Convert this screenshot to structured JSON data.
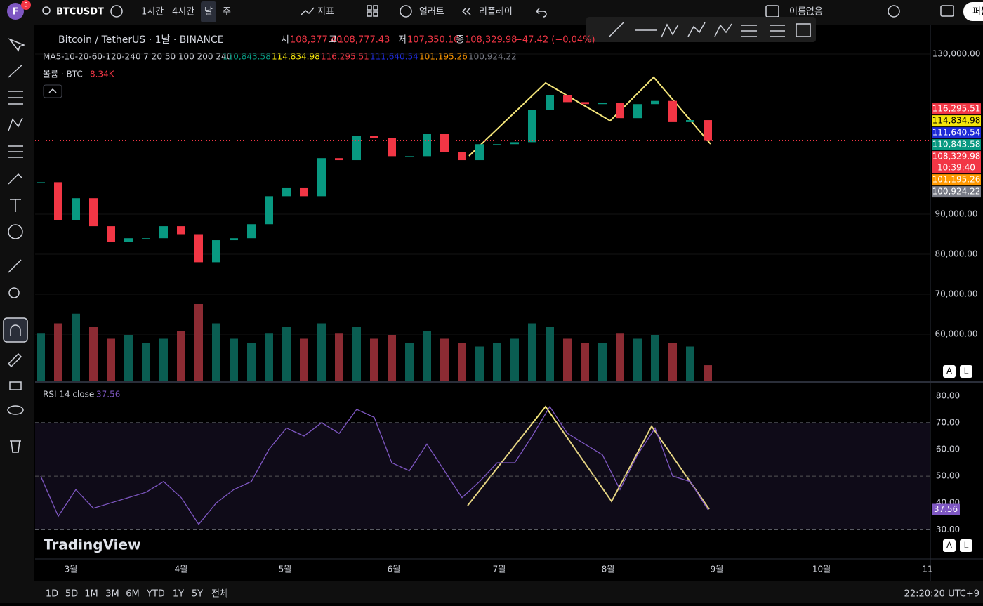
{
  "toolbar": {
    "avatar": "F",
    "badge": "5",
    "symbol": "BTCUSDT",
    "intervals": [
      "1시간",
      "4시간",
      "날",
      "주"
    ],
    "indicators": "지표",
    "alert": "얼러트",
    "replay": "리플레이",
    "layout_name": "이름없음",
    "publish": "퍼블"
  },
  "legend": {
    "title": "Bitcoin / TetherUS · 1날 · BINANCE",
    "o_label": "시",
    "o": "108,377.40",
    "h_label": "고",
    "h": "108,777.43",
    "l_label": "저",
    "l": "107,350.10",
    "c_label": "종",
    "c": "108,329.98",
    "change": "−47.42 (−0.04%)",
    "ma_title": "MA5-10-20-60-120-240 7 20 50 100 200 240"
  },
  "chart_data": {
    "type": "candlestick",
    "closes": [
      98000,
      88500,
      94000,
      87000,
      83000,
      84000,
      84000,
      87000,
      85000,
      78000,
      83500,
      84000,
      87500,
      94500,
      96500,
      94500,
      104000,
      103500,
      109500,
      109000,
      104500,
      104500,
      110000,
      105500,
      103500,
      107500,
      107500,
      108000,
      116000,
      119800,
      118000,
      117500,
      117800,
      114000,
      117500,
      118300,
      113000,
      113500,
      108329.98
    ],
    "ylim": [
      48246,
      136491
    ],
    "yticks": [
      {
        "value": 60000,
        "label": "60,000.00"
      },
      {
        "value": 70000,
        "label": "70,000.00"
      },
      {
        "value": 80000,
        "label": "80,000.00"
      },
      {
        "value": 90000,
        "label": "90,000.00"
      },
      {
        "value": 130000,
        "label": "130,000.00"
      }
    ],
    "moving_averages": [
      {
        "value": 110843.58,
        "label": "110,843.58",
        "color": "#089981"
      },
      {
        "value": 114834.98,
        "label": "114,834.98",
        "color": "#f5e50a"
      },
      {
        "value": 116295.51,
        "label": "116,295.51",
        "color": "#f23645"
      },
      {
        "value": 111640.54,
        "label": "111,640.54",
        "color": "#1e2bd8"
      },
      {
        "value": 101195.26,
        "label": "101,195.26",
        "color": "#ff9800"
      },
      {
        "value": 100924.22,
        "label": "100,924.22",
        "color": "#787b86"
      }
    ],
    "last_price": {
      "value": 108329.98,
      "label": "108,329.98",
      "color": "#f23645",
      "countdown": "10:39:40"
    },
    "volume": {
      "title": "볼륨 · BTC",
      "last_label": "8.34K",
      "values": [
        25,
        30,
        35,
        28,
        22,
        24,
        20,
        22,
        26,
        40,
        30,
        22,
        20,
        25,
        28,
        22,
        30,
        25,
        28,
        22,
        24,
        20,
        26,
        22,
        20,
        18,
        20,
        22,
        30,
        28,
        22,
        20,
        20,
        25,
        22,
        24,
        20,
        18,
        8.34
      ]
    },
    "rsi": {
      "title": "RSI 14 close",
      "last_label": "37.56",
      "values": [
        50,
        35,
        45,
        38,
        40,
        42,
        44,
        48,
        42,
        32,
        40,
        45,
        48,
        60,
        68,
        65,
        70,
        66,
        75,
        72,
        55,
        52,
        62,
        52,
        42,
        48,
        55,
        55,
        65,
        76,
        66,
        62,
        58,
        45,
        58,
        68,
        50,
        48,
        37.56
      ],
      "ylim": [
        19.3,
        84.7
      ],
      "yticks": [
        {
          "value": 30,
          "label": "30.00"
        },
        {
          "value": 40,
          "label": "40.00"
        },
        {
          "value": 50,
          "label": "50.00"
        },
        {
          "value": 60,
          "label": "60.00"
        },
        {
          "value": 70,
          "label": "70.00"
        },
        {
          "value": 80,
          "label": "80.00"
        }
      ],
      "band": [
        30,
        70
      ],
      "midline": 50
    },
    "months": [
      "3월",
      "4월",
      "5월",
      "6월",
      "7월",
      "8월",
      "9월",
      "10월",
      "11"
    ],
    "scale_buttons": [
      "A",
      "L"
    ]
  },
  "bottom_bar": {
    "ranges": [
      "1D",
      "5D",
      "1M",
      "3M",
      "6M",
      "YTD",
      "1Y",
      "5Y",
      "전체"
    ],
    "clock": "22:20:20 UTC+9"
  },
  "watermark": "TradingView"
}
